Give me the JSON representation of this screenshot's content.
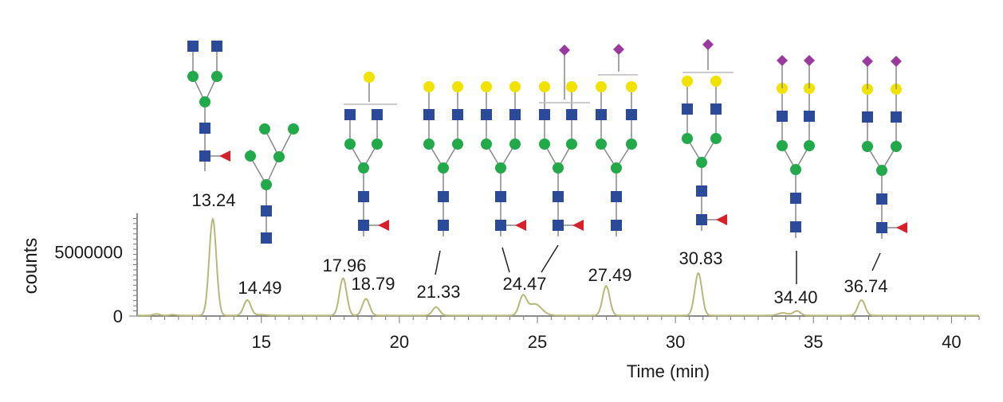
{
  "chart_data": {
    "type": "line",
    "title": "",
    "xlabel": "Time (min)",
    "ylabel": "counts",
    "xlim": [
      10.5,
      41
    ],
    "ylim": [
      0,
      8000000
    ],
    "x_ticks": [
      15,
      20,
      25,
      30,
      35,
      40
    ],
    "y_ticks": [
      0,
      5000000
    ],
    "line_color": "#b8b878",
    "peaks": [
      {
        "time": 13.24,
        "height": 7500000,
        "label": "13.24"
      },
      {
        "time": 14.49,
        "height": 1200000,
        "label": "14.49"
      },
      {
        "time": 17.96,
        "height": 2900000,
        "label": "17.96"
      },
      {
        "time": 18.79,
        "height": 1300000,
        "label": "18.79"
      },
      {
        "time": 21.33,
        "height": 650000,
        "label": "21.33"
      },
      {
        "time": 24.47,
        "height": 1400000,
        "label": "24.47"
      },
      {
        "time": 27.49,
        "height": 2300000,
        "label": "27.49"
      },
      {
        "time": 30.83,
        "height": 3300000,
        "label": "30.83"
      },
      {
        "time": 34.4,
        "height": 350000,
        "label": "34.40"
      },
      {
        "time": 36.74,
        "height": 1200000,
        "label": "36.74"
      }
    ]
  },
  "glycan_colors": {
    "glcnac_square": "#2b4a9a",
    "mannose_circle": "#22a94a",
    "galactose_circle": "#f2e200",
    "sialic_diamond": "#9b3a9e",
    "fucose_triangle": "#d8202a"
  }
}
